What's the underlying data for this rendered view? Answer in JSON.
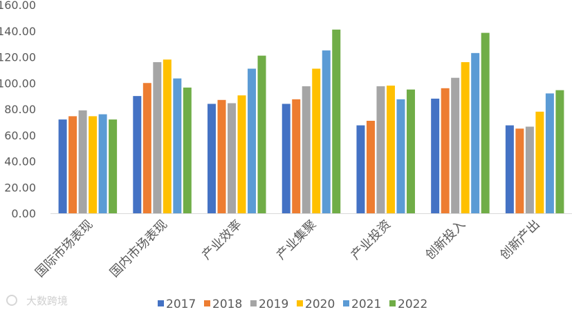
{
  "chart_data": {
    "type": "bar",
    "title": "",
    "xlabel": "",
    "ylabel": "",
    "ylim": [
      0,
      160
    ],
    "y_ticks": [
      "0.00",
      "20.00",
      "40.00",
      "60.00",
      "80.00",
      "100.00",
      "120.00",
      "140.00",
      "160.00"
    ],
    "grid": false,
    "legend_position": "bottom",
    "categories": [
      "国际市场表现",
      "国内市场表现",
      "产业效率",
      "产业集聚",
      "产业投资",
      "创新投入",
      "创新产出"
    ],
    "series": [
      {
        "name": "2017",
        "color": "#4472C4",
        "values": [
          72,
          90,
          84,
          84,
          67.5,
          88,
          67.5
        ]
      },
      {
        "name": "2018",
        "color": "#ED7D31",
        "values": [
          74.5,
          100,
          87,
          87.5,
          71,
          96,
          65
        ]
      },
      {
        "name": "2019",
        "color": "#A5A5A5",
        "values": [
          79,
          116,
          84.5,
          97.5,
          97.5,
          104,
          66.5
        ]
      },
      {
        "name": "2020",
        "color": "#FFC000",
        "values": [
          74.5,
          118,
          90.5,
          111,
          98,
          116,
          78
        ]
      },
      {
        "name": "2021",
        "color": "#5B9BD5",
        "values": [
          76,
          103.5,
          111,
          125,
          87.5,
          123,
          92
        ]
      },
      {
        "name": "2022",
        "color": "#70AD47",
        "values": [
          72,
          96.5,
          121,
          141,
          95,
          138.5,
          94.5
        ]
      }
    ]
  },
  "watermark": "大数跨境"
}
